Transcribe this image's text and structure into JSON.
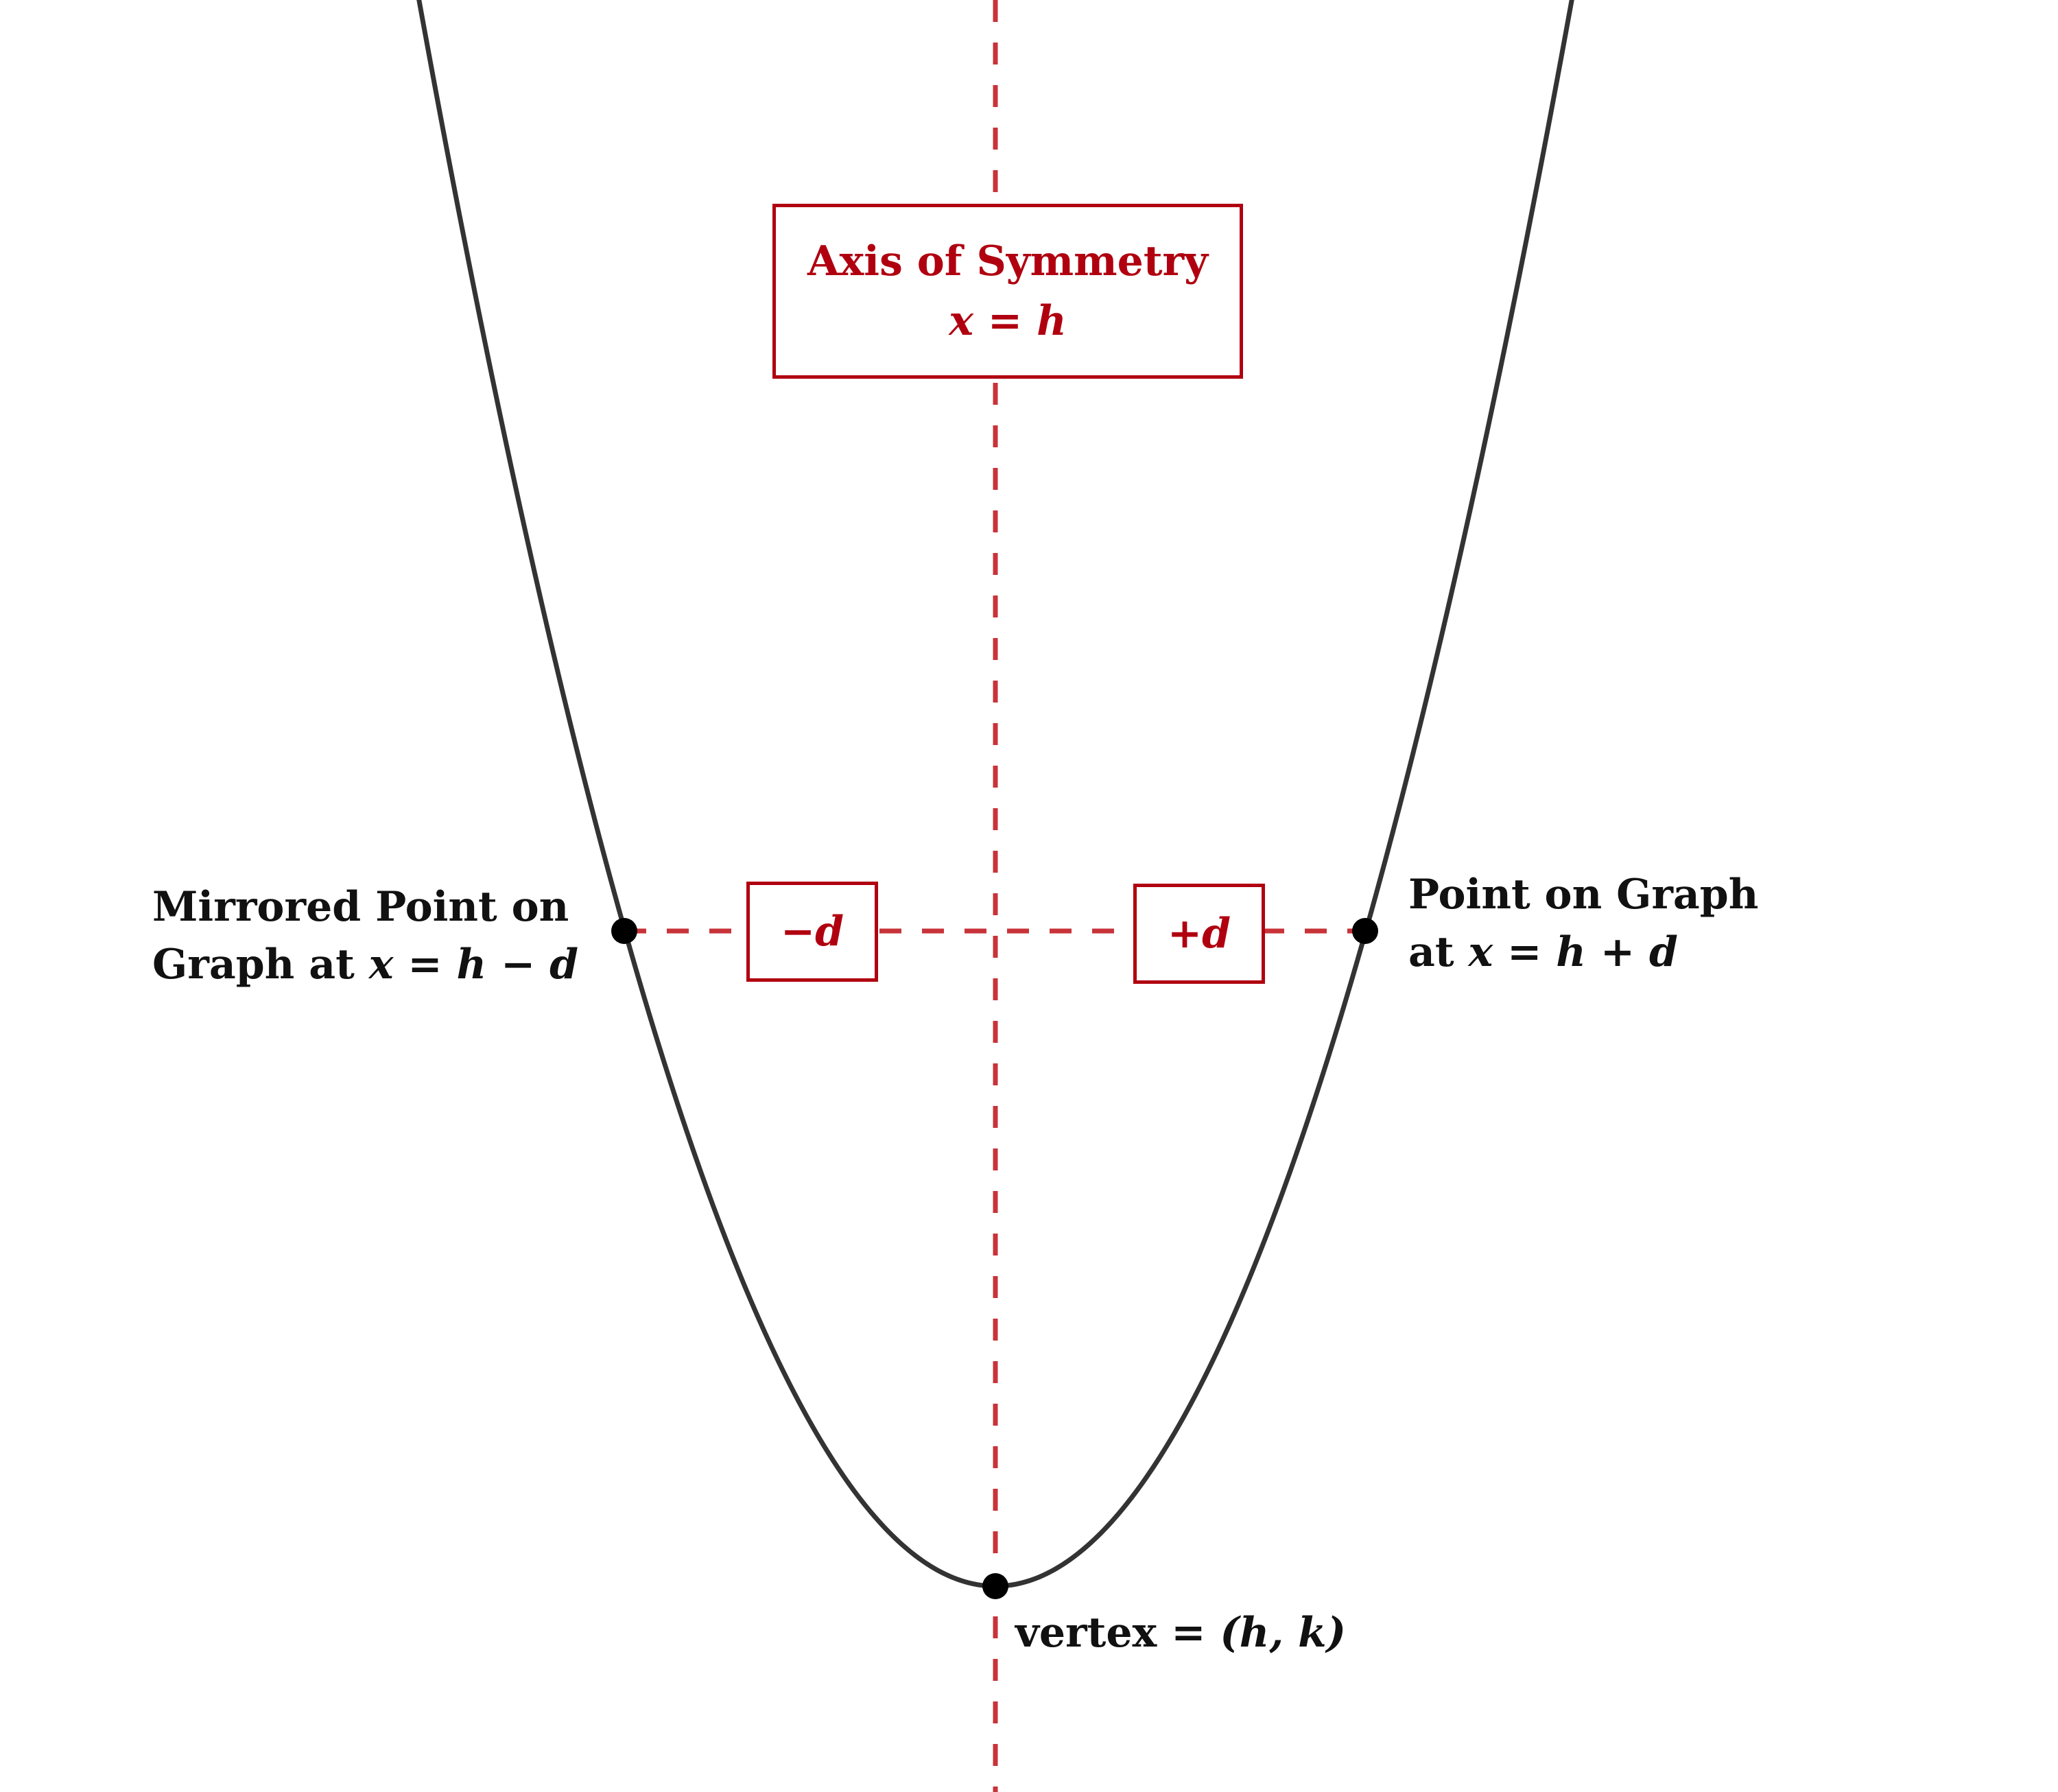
{
  "colors": {
    "curve": "#333333",
    "axis": "#c8333a",
    "box_border": "#b00010",
    "box_text": "#b00010",
    "label_text": "#111111",
    "point": "#000000"
  },
  "axis_box": {
    "title": "Axis of Symmetry",
    "equation": "x = h"
  },
  "offset_boxes": {
    "minus": "−d",
    "plus": "+d"
  },
  "labels": {
    "mirrored_line1": "Mirrored Point on",
    "mirrored_line2_prefix": "Graph at ",
    "mirrored_line2_math": "x = h − d",
    "point_line1": "Point on Graph",
    "point_line2_prefix": "at ",
    "point_line2_math": "x = h + d",
    "vertex_prefix": "vertex = ",
    "vertex_math": "(h, k)"
  }
}
